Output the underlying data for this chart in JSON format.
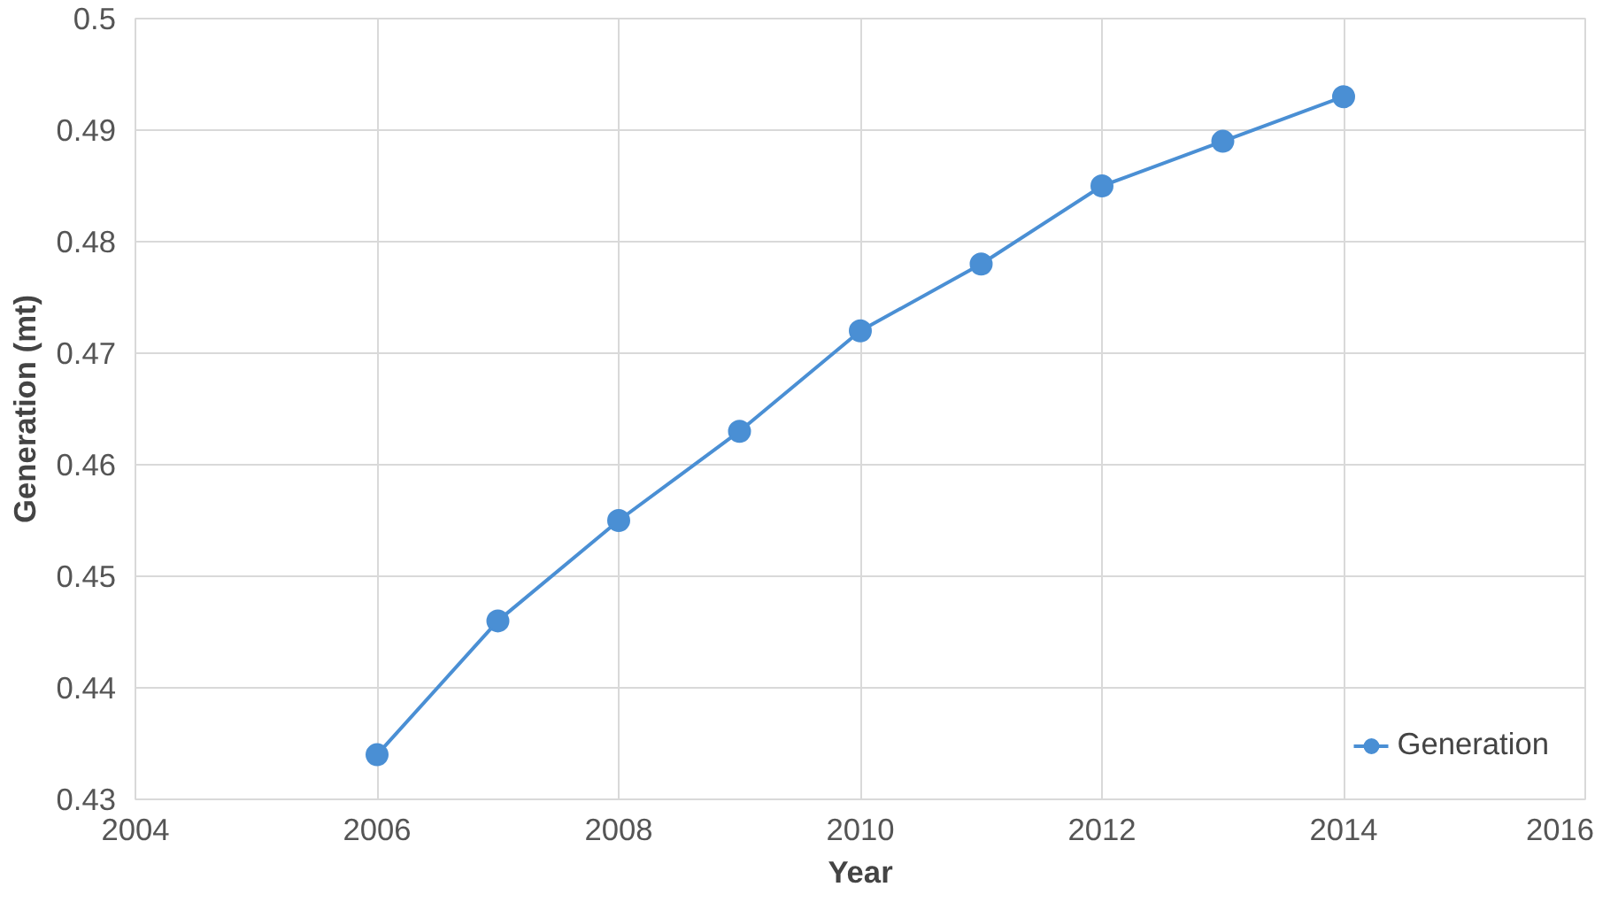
{
  "chart_data": {
    "type": "line",
    "xlabel": "Year",
    "ylabel": "Generation (mt)",
    "x": [
      2006,
      2007,
      2008,
      2009,
      2010,
      2011,
      2012,
      2013,
      2014
    ],
    "series": [
      {
        "name": "Generation",
        "color": "#4a8fd4",
        "values": [
          0.434,
          0.446,
          0.455,
          0.463,
          0.472,
          0.478,
          0.485,
          0.489,
          0.493
        ]
      }
    ],
    "xlim": [
      2004,
      2016
    ],
    "xticks": [
      2004,
      2006,
      2008,
      2010,
      2012,
      2014,
      2016
    ],
    "ylim": [
      0.43,
      0.5
    ],
    "yticks": [
      0.43,
      0.44,
      0.45,
      0.46,
      0.47,
      0.48,
      0.49,
      0.5
    ],
    "grid": true,
    "legend": "bottom right",
    "marker": "circle",
    "line_style": "solid"
  }
}
